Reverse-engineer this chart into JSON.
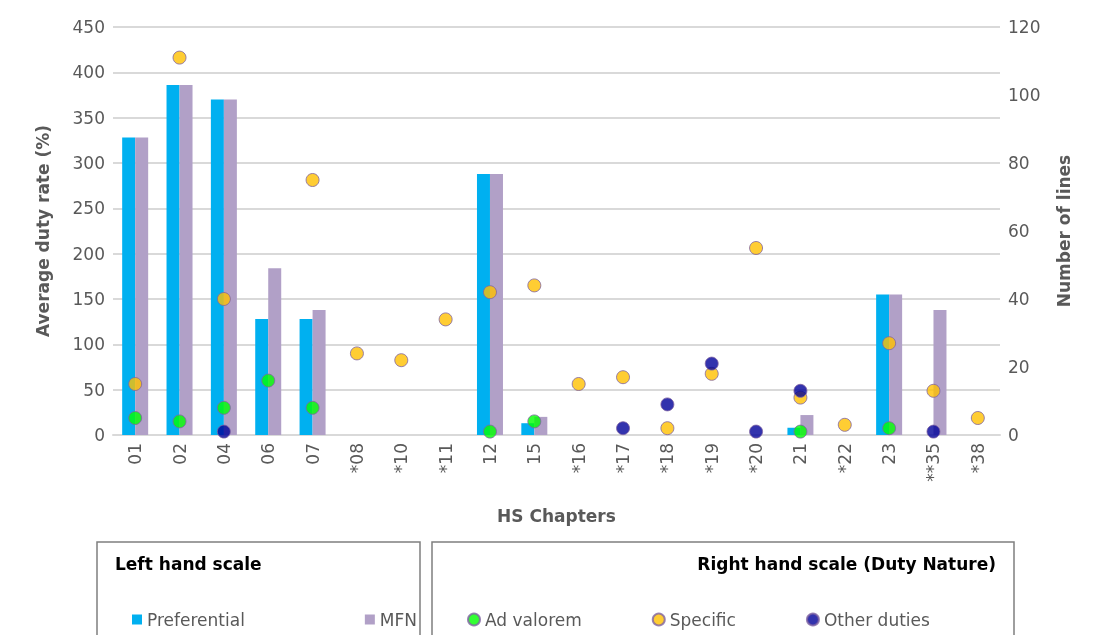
{
  "chart_data": {
    "type": "bar",
    "xlabel": "HS Chapters",
    "ylabel": "Average duty rate (%)",
    "y2label": "Number of lines",
    "categories": [
      "01",
      "02",
      "04",
      "06",
      "07",
      "*08",
      "*10",
      "*11",
      "12",
      "15",
      "*16",
      "*17",
      "*18",
      "*19",
      "*20",
      "21",
      "*22",
      "23",
      "**35",
      "*38"
    ],
    "series": [
      {
        "name": "Preferential",
        "color": "#00b0f0",
        "values": [
          328,
          386,
          370,
          128,
          128,
          null,
          null,
          null,
          288,
          13,
          null,
          null,
          null,
          null,
          null,
          8,
          null,
          155,
          null,
          null
        ]
      },
      {
        "name": "MFN",
        "color": "#b1a0c7",
        "values": [
          328,
          386,
          370,
          184,
          138,
          null,
          null,
          null,
          288,
          20,
          null,
          null,
          null,
          null,
          null,
          22,
          null,
          155,
          138,
          null
        ]
      },
      {
        "name": "Ad valorem",
        "type": "scatter",
        "axis": "y2",
        "color": "#00ff00",
        "values": [
          5,
          4,
          8,
          16,
          8,
          null,
          null,
          null,
          1,
          4,
          null,
          null,
          null,
          null,
          null,
          1,
          null,
          2,
          null,
          null
        ]
      },
      {
        "name": "Specific",
        "type": "scatter",
        "axis": "y2",
        "color": "#ffc000",
        "values": [
          15,
          111,
          40,
          null,
          75,
          24,
          22,
          34,
          42,
          44,
          15,
          17,
          2,
          18,
          55,
          11,
          3,
          27,
          13,
          5
        ]
      },
      {
        "name": "Other duties",
        "type": "scatter",
        "axis": "y2",
        "color": "#000099",
        "values": [
          null,
          null,
          1,
          null,
          null,
          null,
          null,
          null,
          null,
          null,
          null,
          2,
          9,
          21,
          1,
          13,
          null,
          null,
          1,
          null
        ]
      }
    ],
    "ylim": [
      0,
      450
    ],
    "yticks": [
      0,
      50,
      100,
      150,
      200,
      250,
      300,
      350,
      400,
      450
    ],
    "y2lim": [
      0,
      120
    ],
    "y2ticks": [
      0,
      20,
      40,
      60,
      80,
      100,
      120
    ],
    "grid": "y",
    "legend": "bottom",
    "marker": "circle",
    "annotations": [
      "Left hand scale",
      "Right hand scale (Duty Nature)"
    ]
  }
}
